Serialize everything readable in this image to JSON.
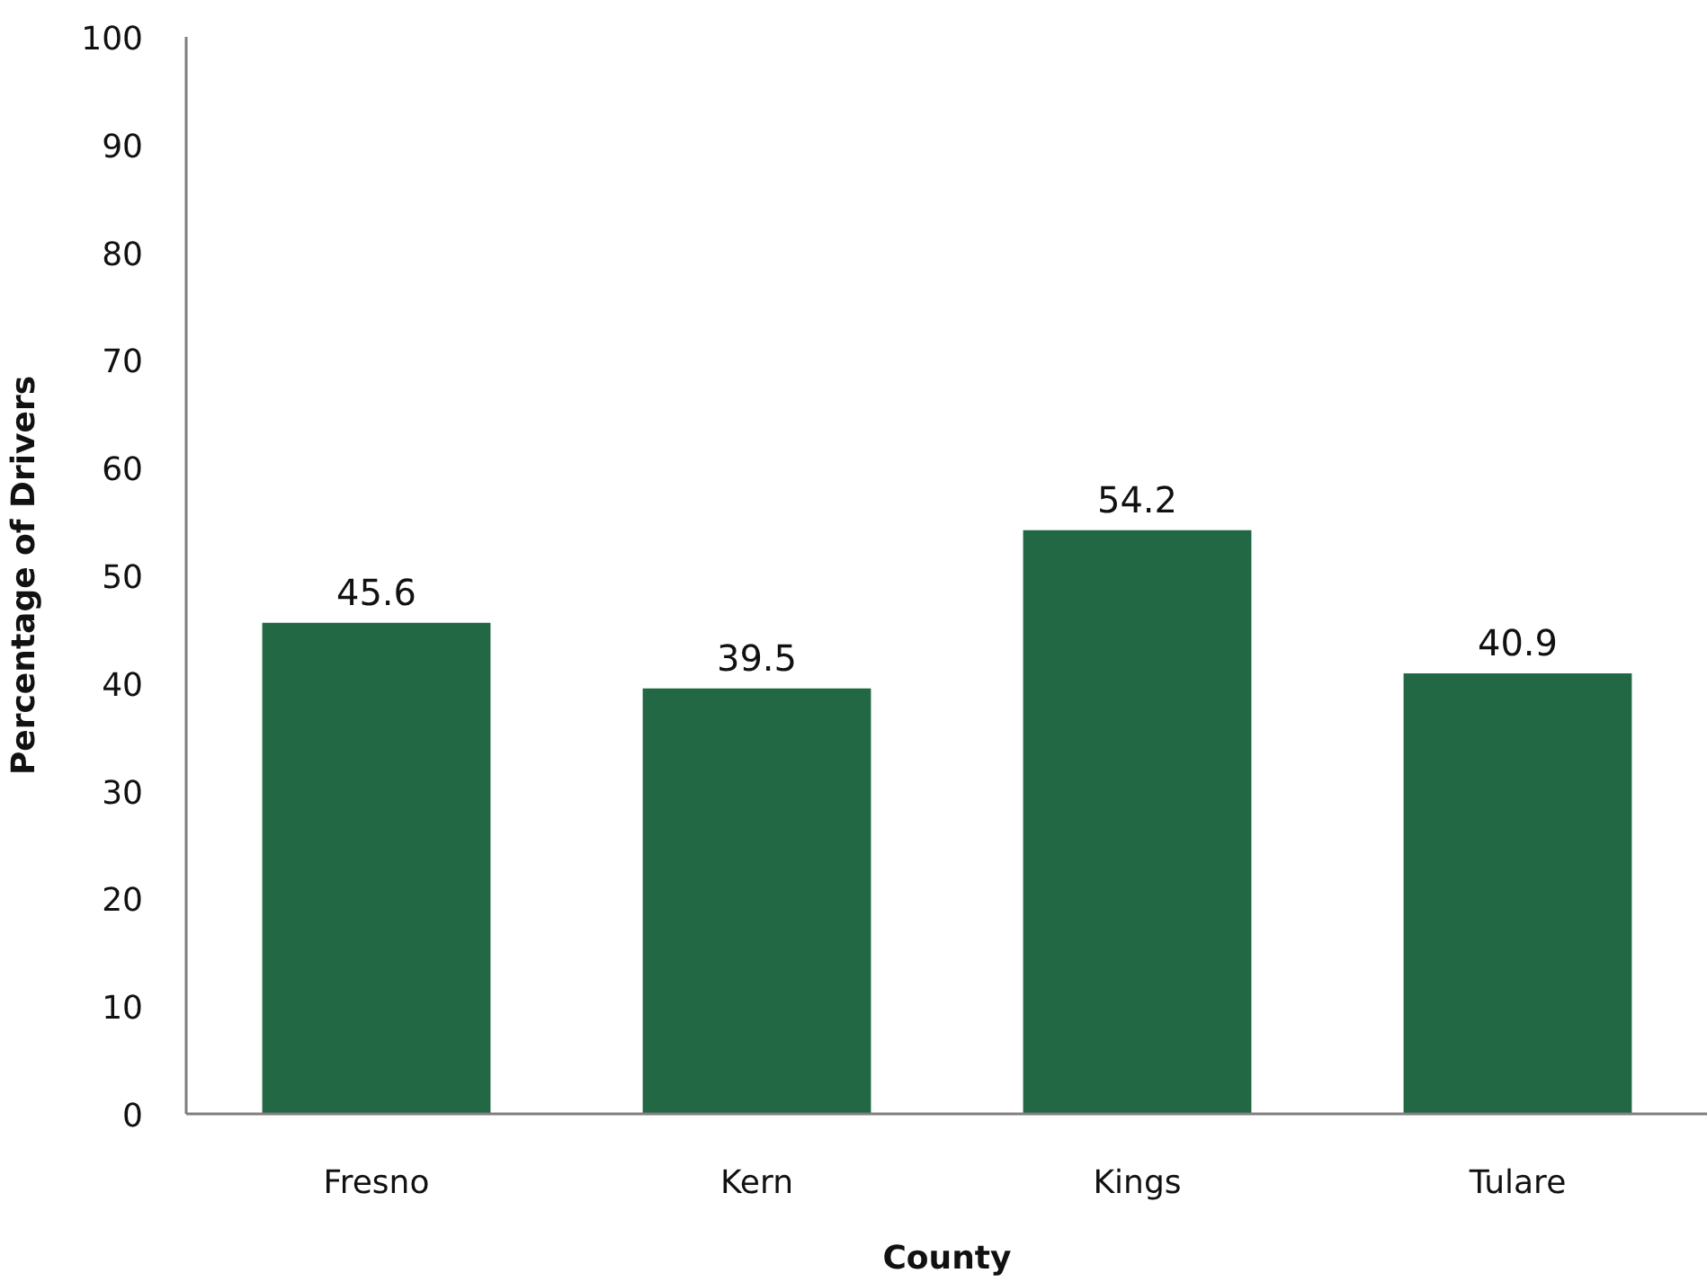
{
  "chart_data": {
    "type": "bar",
    "xlabel": "County",
    "ylabel": "Percentage of Drivers",
    "categories": [
      "Fresno",
      "Kern",
      "Kings",
      "Tulare"
    ],
    "values": [
      45.6,
      39.5,
      54.2,
      40.9
    ],
    "color": "#236845",
    "ylim": [
      0,
      100
    ],
    "yticks": [
      0,
      10,
      20,
      30,
      40,
      50,
      60,
      70,
      80,
      90,
      100
    ],
    "grid": false,
    "data_labels": true
  }
}
